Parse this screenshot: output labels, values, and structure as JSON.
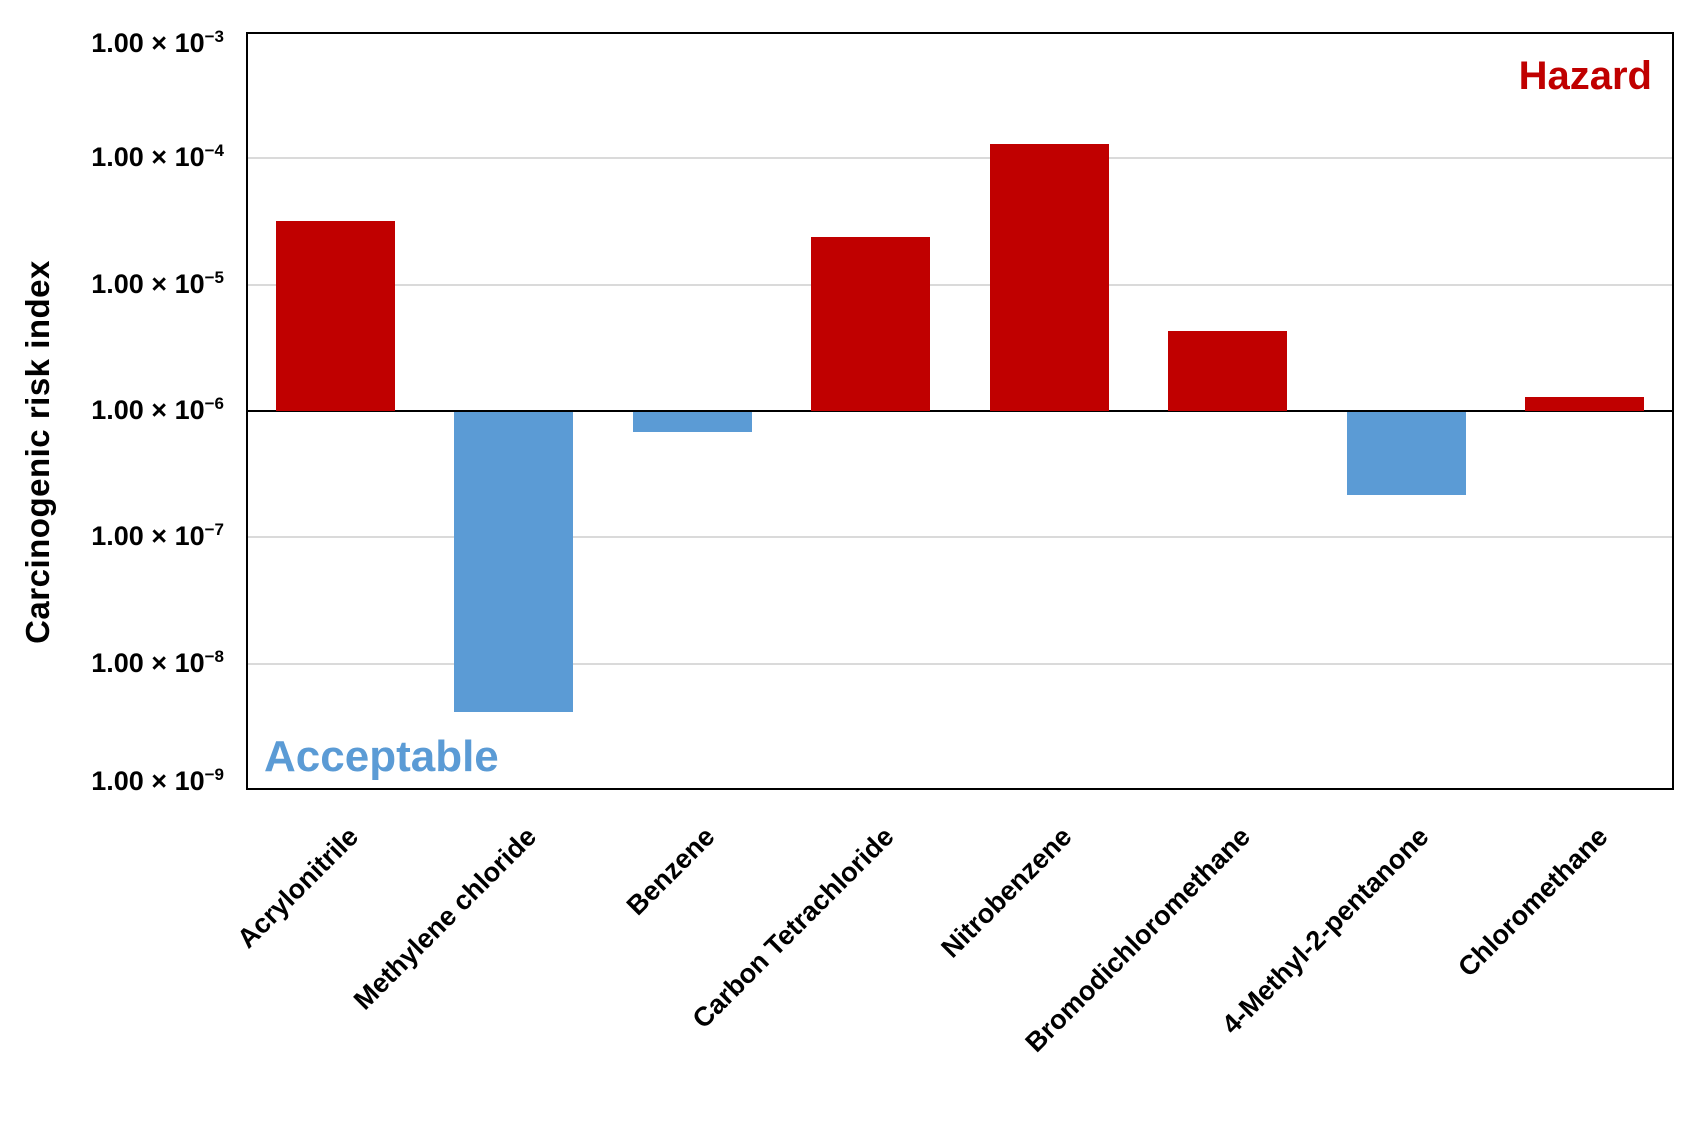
{
  "chart_data": {
    "type": "bar",
    "title": "",
    "ylabel": "Carcinogenic risk index",
    "xlabel": "",
    "y_scale": "log",
    "ylim": [
      1e-09,
      0.001
    ],
    "hazard_threshold": 1e-06,
    "grid": "horizontal gridline at each decade",
    "legend_position": "none",
    "x_tick_rotation_deg": 45,
    "categories": [
      "Acrylonitrile",
      "Methylene chloride",
      "Benzene",
      "Carbon Tetrachloride",
      "Nitrobenzene",
      "Bromodichloromethane",
      "4-Methyl-2-pentanone",
      "Chloromethane"
    ],
    "values": [
      3.2e-05,
      4.2e-09,
      7e-07,
      2.4e-05,
      0.00013,
      4.3e-06,
      2.2e-07,
      1.3e-06
    ],
    "color_rule": "bars above 1e-6 are hazard red, bars below 1e-6 are acceptable blue and drawn downward from the 1e-6 baseline",
    "y_ticks": [
      {
        "text": "1.00 × 10",
        "exp": "−3",
        "value": 0.001
      },
      {
        "text": "1.00 × 10",
        "exp": "−4",
        "value": 0.0001
      },
      {
        "text": "1.00 × 10",
        "exp": "−5",
        "value": 1e-05
      },
      {
        "text": "1.00 × 10",
        "exp": "−6",
        "value": 1e-06
      },
      {
        "text": "1.00 × 10",
        "exp": "−7",
        "value": 1e-07
      },
      {
        "text": "1.00 × 10",
        "exp": "−8",
        "value": 1e-08
      },
      {
        "text": "1.00 × 10",
        "exp": "−9",
        "value": 1e-09
      }
    ],
    "annotations": [
      {
        "text": "Hazard",
        "color": "#C00000",
        "position": "top-right"
      },
      {
        "text": "Acceptable",
        "color": "#5B9BD5",
        "position": "bottom-left"
      }
    ]
  },
  "colors": {
    "hazard_bar": "#C00000",
    "acceptable_bar": "#5B9BD5",
    "gridline": "#DADADA",
    "axis": "#000000",
    "background": "#FFFFFF",
    "text": "#000000"
  }
}
